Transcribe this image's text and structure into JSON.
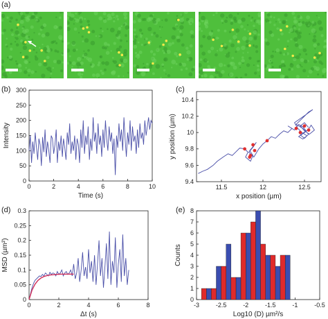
{
  "panel_labels": {
    "a": "(a)",
    "b": "(b)",
    "c": "(c)",
    "d": "(d)",
    "e": "(e)"
  },
  "image_strip": {
    "frame_count": 5,
    "background_color": "#4fbf3c",
    "spot_color": "#f2e84a",
    "arrow_color": "#ffffff"
  },
  "chart_data": [
    {
      "id": "b",
      "type": "line",
      "xlabel": "Time (s)",
      "ylabel": "Intensity",
      "xlim": [
        0,
        10
      ],
      "ylim": [
        0,
        300
      ],
      "xticks": [
        0,
        2,
        4,
        6,
        8,
        10
      ],
      "yticks": [
        0,
        50,
        100,
        150,
        200,
        250,
        300
      ],
      "color": "#4a4fa8",
      "x": [
        0,
        0.1,
        0.2,
        0.3,
        0.4,
        0.5,
        0.6,
        0.7,
        0.8,
        0.9,
        1.0,
        1.1,
        1.2,
        1.3,
        1.4,
        1.5,
        1.6,
        1.7,
        1.8,
        1.9,
        2.0,
        2.1,
        2.2,
        2.3,
        2.4,
        2.5,
        2.6,
        2.7,
        2.8,
        2.9,
        3.0,
        3.1,
        3.2,
        3.3,
        3.4,
        3.5,
        3.6,
        3.7,
        3.8,
        3.9,
        4.0,
        4.1,
        4.2,
        4.3,
        4.4,
        4.5,
        4.6,
        4.7,
        4.8,
        4.9,
        5.0,
        5.1,
        5.2,
        5.3,
        5.4,
        5.5,
        5.6,
        5.7,
        5.8,
        5.9,
        6.0,
        6.1,
        6.2,
        6.3,
        6.4,
        6.5,
        6.6,
        6.7,
        6.8,
        6.9,
        7.0,
        7.1,
        7.2,
        7.3,
        7.4,
        7.5,
        7.6,
        7.7,
        7.8,
        7.9,
        8.0,
        8.1,
        8.2,
        8.3,
        8.4,
        8.5,
        8.6,
        8.7,
        8.8,
        8.9,
        9.0,
        9.1,
        9.2,
        9.3,
        9.4,
        9.5,
        9.6,
        9.7,
        9.8,
        9.9,
        10.0
      ],
      "y": [
        100,
        150,
        60,
        130,
        90,
        160,
        110,
        70,
        140,
        120,
        50,
        145,
        95,
        170,
        80,
        130,
        100,
        60,
        150,
        140,
        90,
        120,
        170,
        60,
        130,
        100,
        150,
        80,
        140,
        110,
        70,
        160,
        120,
        190,
        90,
        130,
        100,
        150,
        70,
        140,
        120,
        60,
        170,
        110,
        200,
        90,
        150,
        120,
        180,
        70,
        140,
        100,
        210,
        130,
        160,
        90,
        190,
        120,
        150,
        80,
        170,
        110,
        200,
        140,
        100,
        180,
        130,
        160,
        90,
        140,
        20,
        150,
        110,
        190,
        130,
        170,
        100,
        210,
        140,
        80,
        160,
        120,
        200,
        100,
        180,
        130,
        150,
        90,
        170,
        110,
        190,
        140,
        160,
        120,
        200,
        150,
        180,
        210,
        170,
        200,
        190
      ]
    },
    {
      "id": "c",
      "type": "line",
      "xlabel": "x position (µm)",
      "ylabel": "y position (µm)",
      "xlim": [
        11.2,
        12.7
      ],
      "ylim": [
        9.4,
        10.5
      ],
      "xticks": [
        11.5,
        12,
        12.5
      ],
      "yticks": [
        9.4,
        9.6,
        9.8,
        10.0,
        10.2,
        10.4
      ],
      "xticklabels": [
        "11.5",
        "12",
        "12.5"
      ],
      "yticklabels": [
        "9.4",
        "9.6",
        "9.8",
        "10",
        "10.2",
        "10.4"
      ],
      "color": "#4a4fa8",
      "marker_color": "#e03030",
      "x": [
        11.22,
        11.28,
        11.33,
        11.4,
        11.45,
        11.52,
        11.58,
        11.63,
        11.68,
        11.72,
        11.78,
        11.82,
        11.79,
        11.85,
        11.88,
        11.84,
        11.9,
        11.86,
        11.92,
        11.88,
        11.83,
        11.89,
        11.95,
        12.0,
        12.05,
        12.1,
        12.15,
        12.2,
        12.25,
        12.3,
        12.35,
        12.3,
        12.38,
        12.43,
        12.48,
        12.52,
        12.45,
        12.5,
        12.55,
        12.48,
        12.4,
        12.45,
        12.5,
        12.55,
        12.6,
        12.52,
        12.45,
        12.38,
        12.42,
        12.47,
        12.53,
        12.48,
        12.43,
        12.5,
        12.55,
        12.58,
        12.62,
        12.56,
        12.5,
        12.45,
        12.5,
        12.55
      ],
      "y": [
        9.5,
        9.53,
        9.55,
        9.6,
        9.65,
        9.7,
        9.74,
        9.72,
        9.77,
        9.81,
        9.8,
        9.76,
        9.7,
        9.65,
        9.72,
        9.78,
        9.85,
        9.8,
        9.88,
        9.82,
        9.76,
        9.7,
        9.8,
        9.86,
        9.9,
        9.95,
        9.93,
        9.98,
        10.02,
        10.0,
        10.05,
        10.08,
        10.03,
        10.1,
        10.07,
        10.02,
        9.97,
        9.93,
        9.98,
        10.05,
        10.1,
        10.15,
        10.2,
        10.25,
        10.28,
        10.22,
        10.17,
        10.12,
        10.05,
        10.0,
        9.96,
        9.92,
        9.95,
        10.0,
        10.04,
        10.09,
        10.03,
        9.98,
        10.02,
        10.08,
        10.12,
        10.06
      ],
      "markers_x": [
        11.78,
        11.85,
        11.88,
        11.9,
        11.84,
        12.05,
        12.4,
        12.45,
        12.5,
        12.55
      ],
      "markers_y": [
        9.8,
        9.72,
        9.85,
        9.78,
        9.7,
        9.9,
        10.05,
        10.0,
        10.08,
        10.03
      ]
    },
    {
      "id": "d",
      "type": "line",
      "xlabel": "Δt (s)",
      "ylabel": "MSD (µm²)",
      "xlim": [
        0,
        8
      ],
      "ylim": [
        0,
        0.3
      ],
      "xticks": [
        0,
        2,
        4,
        6,
        8
      ],
      "yticks": [
        0,
        0.05,
        0.1,
        0.15,
        0.2,
        0.25,
        0.3
      ],
      "color": "#4a4fa8",
      "fit_color": "#d0305a",
      "x": [
        0,
        0.1,
        0.2,
        0.3,
        0.4,
        0.5,
        0.6,
        0.7,
        0.8,
        0.9,
        1.0,
        1.1,
        1.2,
        1.3,
        1.4,
        1.5,
        1.6,
        1.7,
        1.8,
        1.9,
        2.0,
        2.1,
        2.2,
        2.3,
        2.4,
        2.5,
        2.6,
        2.7,
        2.8,
        2.9,
        3.0,
        3.1,
        3.2,
        3.3,
        3.4,
        3.5,
        3.6,
        3.7,
        3.8,
        3.9,
        4.0,
        4.1,
        4.2,
        4.3,
        4.4,
        4.5,
        4.6,
        4.7,
        4.8,
        4.9,
        5.0,
        5.1,
        5.2,
        5.3,
        5.4,
        5.5,
        5.6,
        5.7,
        5.8,
        5.9,
        6.0,
        6.1,
        6.2,
        6.3,
        6.4,
        6.5,
        6.6,
        6.7
      ],
      "y": [
        0,
        0.02,
        0.04,
        0.055,
        0.065,
        0.07,
        0.075,
        0.08,
        0.078,
        0.085,
        0.08,
        0.09,
        0.085,
        0.08,
        0.092,
        0.085,
        0.09,
        0.088,
        0.08,
        0.095,
        0.085,
        0.09,
        0.1,
        0.08,
        0.09,
        0.095,
        0.085,
        0.09,
        0.1,
        0.08,
        0.12,
        0.07,
        0.09,
        0.14,
        0.06,
        0.1,
        0.16,
        0.08,
        0.11,
        0.07,
        0.17,
        0.09,
        0.13,
        0.06,
        0.15,
        0.05,
        0.12,
        0.2,
        0.08,
        0.14,
        0.04,
        0.11,
        0.19,
        0.07,
        0.23,
        0.05,
        0.13,
        0.09,
        0.21,
        0.04,
        0.12,
        0.17,
        0.06,
        0.22,
        0.08,
        0.14,
        0.05,
        0.1
      ],
      "fit_x": [
        0,
        0.2,
        0.4,
        0.6,
        0.8,
        1.0,
        1.2,
        1.4,
        1.6,
        1.8,
        2.0,
        2.2,
        2.4,
        2.6,
        2.8,
        3.0
      ],
      "fit_y": [
        0,
        0.032,
        0.052,
        0.065,
        0.073,
        0.078,
        0.081,
        0.083,
        0.084,
        0.085,
        0.0855,
        0.086,
        0.086,
        0.086,
        0.086,
        0.086
      ]
    },
    {
      "id": "e",
      "type": "bar",
      "xlabel": "Log10 (D) µm²/s",
      "ylabel": "Counts",
      "xlim": [
        -3,
        -0.5
      ],
      "ylim": [
        0,
        8
      ],
      "xticks": [
        -3,
        -2.5,
        -2,
        -1.5,
        -1,
        -0.5
      ],
      "yticks": [
        0,
        1,
        2,
        3,
        4,
        5,
        6,
        7,
        8
      ],
      "bin_width": 0.1,
      "series": [
        {
          "color": "#3a4db0",
          "bin_centers": [
            -2.75,
            -2.55,
            -2.35,
            -2.15,
            -1.95,
            -1.75,
            -1.55,
            -1.35,
            -1.15
          ],
          "values": [
            1,
            3,
            5,
            2,
            6,
            8,
            4,
            3,
            4
          ]
        },
        {
          "color": "#e02a2a",
          "bin_centers": [
            -2.85,
            -2.65,
            -2.45,
            -2.25,
            -2.05,
            -1.85,
            -1.65,
            -1.45,
            -1.25
          ],
          "values": [
            1,
            1,
            3,
            2,
            6,
            7,
            5,
            4,
            4
          ]
        }
      ]
    }
  ]
}
